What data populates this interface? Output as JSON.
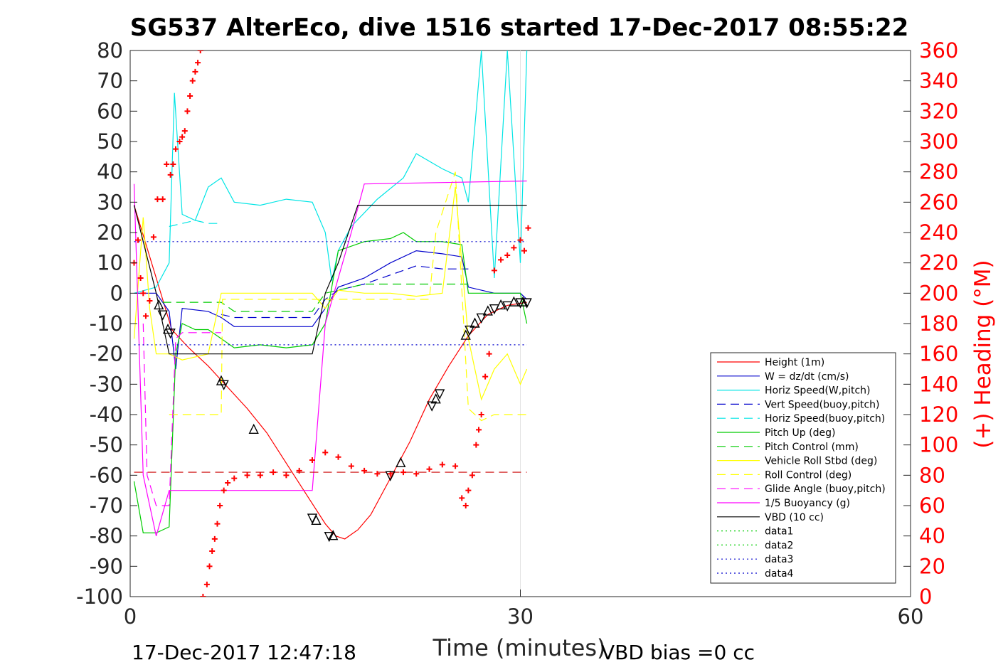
{
  "chart_data": {
    "type": "line",
    "title": "SG537 AlterEco, dive 1516 started 17-Dec-2017 08:55:22",
    "xlabel": "Time (minutes)",
    "ylabel_right": "(+) Heading (°M)",
    "xlim": [
      0,
      60
    ],
    "ylim_left": [
      -100,
      80
    ],
    "ylim_right": [
      0,
      360
    ],
    "x_ticks": [
      "0",
      "30",
      "60"
    ],
    "y_ticks_left": [
      "80",
      "70",
      "60",
      "50",
      "40",
      "30",
      "20",
      "10",
      "0",
      "-10",
      "-20",
      "-30",
      "-40",
      "-50",
      "-60",
      "-70",
      "-80",
      "-90",
      "-100"
    ],
    "y_ticks_right": [
      "360",
      "340",
      "320",
      "300",
      "280",
      "260",
      "240",
      "220",
      "200",
      "180",
      "160",
      "140",
      "120",
      "100",
      "80",
      "60",
      "40",
      "20",
      "0"
    ],
    "grid_x": true,
    "grid_y": false,
    "legend_position": "lower-right",
    "footer_left": "17-Dec-2017 12:47:18",
    "footer_right": "VBD bias =0 cc",
    "series": [
      {
        "name": "Height (1m)",
        "color": "#ff0000",
        "style": "solid",
        "x": [
          0.3,
          2,
          3.2,
          4.5,
          6,
          7.5,
          9,
          10.5,
          12,
          13.5,
          15,
          15.8,
          16.5,
          17.5,
          18.5,
          20,
          21.5,
          23,
          24.5,
          26,
          27.5,
          29,
          30.5
        ],
        "y": [
          29,
          5,
          -12,
          -18,
          -24,
          -31,
          -38,
          -46,
          -56,
          -66,
          -76,
          -80,
          -81,
          -78,
          -73,
          -61,
          -49,
          -35,
          -24,
          -14,
          -7,
          -4,
          -3
        ]
      },
      {
        "name": "W = dz/dt (cm/s)",
        "color": "#0000cc",
        "style": "solid",
        "x": [
          0.3,
          2,
          3,
          3.5,
          4,
          6,
          7,
          8,
          10,
          12,
          14,
          15,
          16,
          18,
          20,
          22,
          24,
          25.5,
          26,
          28,
          30,
          30.5
        ],
        "y": [
          0,
          0,
          -6,
          -25,
          -5,
          -6,
          -8,
          -11,
          -11,
          -11,
          -11,
          -5,
          2,
          5,
          10,
          14,
          13,
          12,
          2,
          0,
          0,
          -2
        ]
      },
      {
        "name": "Horiz Speed(W,pitch)",
        "color": "#00e5e5",
        "style": "solid",
        "x": [
          0.3,
          2,
          3,
          3.4,
          4,
          5,
          6,
          7,
          8,
          10,
          12,
          14,
          15,
          15.5,
          16,
          17,
          19,
          21,
          22,
          24,
          25.5,
          26,
          27,
          28,
          29,
          30,
          30.5
        ],
        "y": [
          0,
          2,
          10,
          66,
          26,
          24,
          35,
          38,
          30,
          29,
          31,
          30,
          20,
          4,
          14,
          22,
          31,
          38,
          46,
          41,
          38,
          30,
          80,
          5,
          80,
          10,
          80
        ]
      },
      {
        "name": "Vert Speed(buoy,pitch)",
        "color": "#0000cc",
        "style": "dashed",
        "x": [
          7,
          8,
          10,
          12,
          14,
          15,
          16,
          18,
          20,
          22,
          24,
          26
        ],
        "y": [
          -7,
          -8,
          -8,
          -8,
          -8,
          -2,
          1,
          3,
          6,
          9,
          8,
          8
        ]
      },
      {
        "name": "Horiz Speed(buoy,pitch)",
        "color": "#00e5e5",
        "style": "dashed",
        "x": [
          3,
          4,
          5,
          6,
          7
        ],
        "y": [
          22,
          23,
          24,
          23,
          23
        ]
      },
      {
        "name": "Pitch Up (deg)",
        "color": "#00cc00",
        "style": "solid",
        "x": [
          0.3,
          1,
          2,
          3,
          3.5,
          4,
          5,
          6,
          7,
          8,
          10,
          12,
          14,
          15,
          16,
          18,
          20,
          21,
          22,
          24,
          25.5,
          26,
          28,
          30,
          30.5
        ],
        "y": [
          -62,
          -79,
          -79,
          -77,
          -20,
          -10,
          -12,
          -12,
          -15,
          -18,
          -17,
          -18,
          -17,
          -10,
          14,
          17,
          18,
          20,
          17,
          17,
          16,
          0,
          0,
          0,
          -10
        ]
      },
      {
        "name": "Pitch Control (mm)",
        "color": "#00cc00",
        "style": "dashed",
        "x": [
          2.5,
          7,
          8,
          14,
          15,
          18,
          26
        ],
        "y": [
          -3,
          -3,
          -6,
          -6,
          0,
          3,
          3
        ]
      },
      {
        "name": "Vehicle Roll Stbd (deg)",
        "color": "#ffff00",
        "style": "solid",
        "x": [
          0.3,
          1,
          1.5,
          2,
          3,
          4,
          6,
          7,
          8,
          10,
          12,
          14,
          15,
          16,
          18,
          20,
          22,
          24,
          25,
          26,
          27,
          28,
          29,
          30,
          30.5
        ],
        "y": [
          -15,
          25,
          -5,
          -20,
          -20,
          -22,
          -20,
          0,
          0,
          0,
          0,
          0,
          -5,
          1,
          0,
          0,
          -1,
          0,
          35,
          -15,
          -35,
          -25,
          -20,
          -30,
          -25
        ]
      },
      {
        "name": "Roll Control (deg)",
        "color": "#ffff00",
        "style": "dashed",
        "x": [
          3,
          7,
          7.1,
          14,
          23,
          23.5,
          25,
          26,
          27,
          28,
          30,
          30.5
        ],
        "y": [
          -40,
          -40,
          -2,
          -2,
          -2,
          20,
          40,
          -38,
          -42,
          -40,
          -40,
          -40
        ]
      },
      {
        "name": "Glide Angle (buoy,pitch)",
        "color": "#ff00ff",
        "style": "dashed",
        "x": [
          1,
          1.3,
          2,
          3,
          3.5,
          4,
          6,
          7
        ],
        "y": [
          -10,
          -60,
          -70,
          -70,
          -15,
          -13,
          -13,
          -13
        ]
      },
      {
        "name": "1/5 Buoyancy (g)",
        "color": "#ff00ff",
        "style": "solid",
        "x": [
          0.3,
          1,
          2,
          3,
          4,
          14,
          15,
          17,
          18,
          30.5
        ],
        "y": [
          36,
          -60,
          -80,
          -65,
          -65,
          -65,
          -10,
          20,
          36,
          37
        ]
      },
      {
        "name": "VBD (10 cc)",
        "color": "#000000",
        "style": "solid",
        "x": [
          0.3,
          2,
          3,
          4,
          14,
          15,
          16,
          17.5,
          18.5,
          30.5
        ],
        "y": [
          29,
          0,
          -20,
          -20,
          -20,
          0,
          10,
          29,
          29,
          29
        ]
      },
      {
        "name": "data1",
        "color": "#00cc00",
        "style": "dotted",
        "x": [],
        "y": []
      },
      {
        "name": "data2",
        "color": "#00cc00",
        "style": "dotted",
        "x": [],
        "y": []
      },
      {
        "name": "data3",
        "color": "#0000cc",
        "style": "dotted",
        "x": [
          0.3,
          30.5
        ],
        "y": [
          17,
          17
        ]
      },
      {
        "name": "data4",
        "color": "#0000cc",
        "style": "dotted",
        "x": [
          0.3,
          30.5
        ],
        "y": [
          -17,
          -17
        ]
      }
    ],
    "reference_line": {
      "color": "#cc0000",
      "style": "dashed",
      "x": [
        0.3,
        30.5
      ],
      "y": [
        -59,
        -59
      ]
    },
    "heading_points": {
      "color": "#ff0000",
      "axis": "right",
      "x": [
        0.3,
        0.6,
        0.8,
        1.0,
        1.2,
        1.5,
        1.8,
        2.1,
        2.5,
        2.8,
        3.1,
        3.3,
        3.5,
        3.8,
        4.0,
        4.2,
        4.4,
        4.6,
        4.8,
        5.0,
        5.2,
        5.4,
        5.6,
        5.9,
        6.1,
        6.3,
        6.5,
        6.7,
        6.9,
        7.2,
        7.5,
        8,
        9,
        10,
        11,
        12,
        13,
        14,
        15,
        16,
        17,
        18,
        19,
        20,
        21,
        22,
        23,
        24,
        25,
        25.5,
        25.8,
        26.0,
        26.3,
        26.6,
        26.8,
        27.0,
        27.3,
        27.6,
        28,
        28.5,
        29,
        29.5,
        30,
        30.3,
        30.6
      ],
      "y": [
        220,
        235,
        210,
        200,
        185,
        195,
        237,
        262,
        262,
        285,
        278,
        285,
        295,
        300,
        303,
        307,
        320,
        330,
        340,
        346,
        352,
        360,
        0,
        8,
        20,
        30,
        38,
        48,
        60,
        70,
        75,
        78,
        80,
        80,
        82,
        80,
        83,
        90,
        95,
        92,
        86,
        83,
        81,
        81,
        82,
        81,
        84,
        87,
        86,
        65,
        60,
        70,
        80,
        100,
        110,
        120,
        145,
        160,
        215,
        222,
        225,
        230,
        235,
        228,
        243
      ]
    },
    "markers": {
      "color": "#000000",
      "x": [
        2.2,
        2.5,
        2.9,
        3.1,
        7,
        7.2,
        9.5,
        14,
        14.3,
        15.3,
        15.6,
        20,
        20.8,
        23.2,
        23.5,
        23.8,
        25.8,
        26.1,
        26.5,
        27,
        27.5,
        28,
        28.5,
        29,
        29.5,
        30,
        30.2,
        30.5
      ],
      "y": [
        -4,
        -7,
        -12,
        -13,
        -29,
        -30,
        -45,
        -74,
        -75,
        -80,
        -80,
        -60,
        -56,
        -37,
        -35,
        -33,
        -14,
        -12,
        -10,
        -8,
        -6,
        -5,
        -4,
        -4,
        -3,
        -3,
        -3,
        -3
      ]
    }
  },
  "legend": {
    "entries": [
      "Height (1m)",
      "W = dz/dt (cm/s)",
      "Horiz Speed(W,pitch)",
      "Vert Speed(buoy,pitch)",
      "Horiz Speed(buoy,pitch)",
      "Pitch Up (deg)",
      "Pitch Control (mm)",
      "Vehicle Roll Stbd (deg)",
      "Roll Control (deg)",
      "Glide Angle (buoy,pitch)",
      "1/5 Buoyancy (g)",
      "VBD (10 cc)",
      "data1",
      "data2",
      "data3",
      "data4"
    ]
  }
}
